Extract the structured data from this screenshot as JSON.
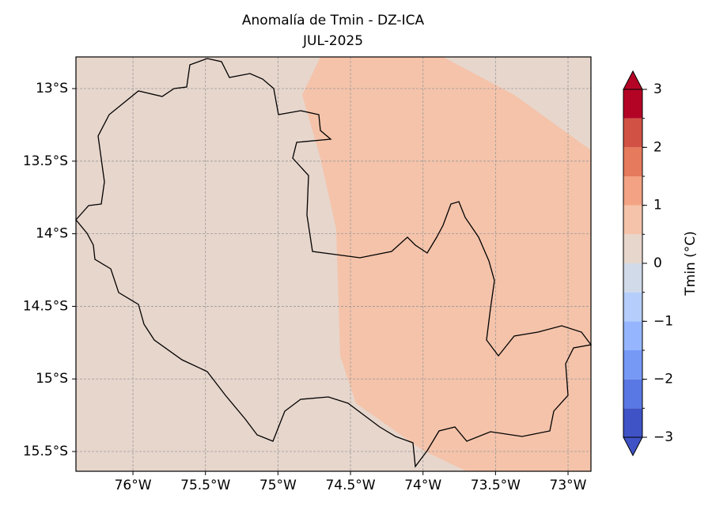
{
  "chart_data": {
    "type": "map",
    "title": "Anomalía de Tmin - DZ-ICA",
    "subtitle": "JUL-2025",
    "xlim": [
      -76.393,
      -72.842
    ],
    "ylim": [
      -15.636,
      -12.782
    ],
    "xticks": [
      {
        "value": -76,
        "label": "76°W"
      },
      {
        "value": -75.5,
        "label": "75.5°W"
      },
      {
        "value": -75,
        "label": "75°W"
      },
      {
        "value": -74.5,
        "label": "74.5°W"
      },
      {
        "value": -74,
        "label": "74°W"
      },
      {
        "value": -73.5,
        "label": "73.5°W"
      },
      {
        "value": -73,
        "label": "73°W"
      }
    ],
    "yticks": [
      {
        "value": -13,
        "label": "13°S"
      },
      {
        "value": -13.5,
        "label": "13.5°S"
      },
      {
        "value": -14,
        "label": "14°S"
      },
      {
        "value": -14.5,
        "label": "14.5°S"
      },
      {
        "value": -15,
        "label": "15°S"
      },
      {
        "value": -15.5,
        "label": "15.5°S"
      }
    ],
    "grid": true,
    "colorbar": {
      "label": "Tmin (°C)",
      "lim": [
        -3,
        3
      ],
      "ticks": [
        {
          "value": -3,
          "label": "−3"
        },
        {
          "value": -2,
          "label": "−2"
        },
        {
          "value": -1,
          "label": "−1"
        },
        0,
        1,
        2,
        3
      ],
      "levels": [
        -3,
        -2.5,
        -2,
        -1.5,
        -1,
        -0.5,
        0,
        0.5,
        1,
        1.5,
        2,
        2.5,
        3
      ],
      "colors": [
        "#3f53c6",
        "#5a78e3",
        "#7699f6",
        "#95b6fe",
        "#b4cdfa",
        "#d0dae9",
        "#e7d6cc",
        "#f4c3aa",
        "#f3a283",
        "#e67a5c",
        "#d15244",
        "#b40426"
      ]
    }
  }
}
